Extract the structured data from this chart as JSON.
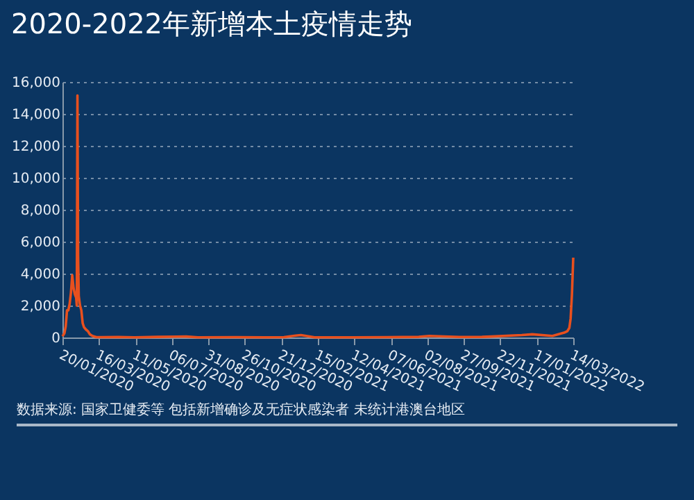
{
  "chart_data": {
    "type": "line",
    "title": "2020-2022年新增本土疫情走势",
    "annotations": [
      "数据来源: 国家卫健委等 包括新增确诊及无症状感染者 未统计港澳台地区"
    ],
    "x": [
      "2020-01-20",
      "2020-01-23",
      "2020-01-25",
      "2020-01-27",
      "2020-01-29",
      "2020-01-31",
      "2020-02-02",
      "2020-02-04",
      "2020-02-06",
      "2020-02-08",
      "2020-02-10",
      "2020-02-11",
      "2020-02-12",
      "2020-02-13",
      "2020-02-14",
      "2020-02-16",
      "2020-02-18",
      "2020-02-20",
      "2020-02-22",
      "2020-02-25",
      "2020-02-28",
      "2020-03-02",
      "2020-03-06",
      "2020-03-12",
      "2020-03-20",
      "2020-04-15",
      "2020-05-10",
      "2020-06-14",
      "2020-07-28",
      "2020-08-15",
      "2020-10-12",
      "2020-11-25",
      "2020-12-25",
      "2021-01-12",
      "2021-01-20",
      "2021-02-10",
      "2021-04-10",
      "2021-06-01",
      "2021-07-20",
      "2021-08-05",
      "2021-09-20",
      "2021-10-25",
      "2021-11-08",
      "2021-12-25",
      "2022-01-10",
      "2022-02-10",
      "2022-02-28",
      "2022-03-05",
      "2022-03-08",
      "2022-03-10",
      "2022-03-12",
      "2022-03-14"
    ],
    "series": [
      {
        "color": "#e8501e",
        "values": [
          80,
          260,
          700,
          1700,
          1700,
          2100,
          2800,
          3900,
          3100,
          2700,
          2500,
          2000,
          15150,
          5100,
          2600,
          2000,
          1700,
          900,
          650,
          500,
          400,
          200,
          100,
          20,
          20,
          30,
          10,
          40,
          60,
          10,
          20,
          10,
          20,
          120,
          150,
          10,
          10,
          20,
          40,
          100,
          30,
          40,
          60,
          150,
          200,
          100,
          300,
          400,
          600,
          1200,
          2700,
          5000
        ]
      }
    ],
    "xlim": [
      "2020-01-20",
      "2022-03-14"
    ],
    "xticks": [
      {
        "value": "2020-01-20",
        "label": "20/01/2020"
      },
      {
        "value": "2020-03-16",
        "label": "16/03/2020"
      },
      {
        "value": "2020-05-11",
        "label": "11/05/2020"
      },
      {
        "value": "2020-07-06",
        "label": "06/07/2020"
      },
      {
        "value": "2020-08-31",
        "label": "31/08/2020"
      },
      {
        "value": "2020-10-26",
        "label": "26/10/2020"
      },
      {
        "value": "2020-12-21",
        "label": "21/12/2020"
      },
      {
        "value": "2021-02-15",
        "label": "15/02/2021"
      },
      {
        "value": "2021-04-12",
        "label": "12/04/2021"
      },
      {
        "value": "2021-06-07",
        "label": "07/06/2021"
      },
      {
        "value": "2021-08-02",
        "label": "02/08/2021"
      },
      {
        "value": "2021-09-27",
        "label": "27/09/2021"
      },
      {
        "value": "2021-11-22",
        "label": "22/11/2021"
      },
      {
        "value": "2022-01-17",
        "label": "17/01/2022"
      },
      {
        "value": "2022-03-14",
        "label": "14/03/2022"
      }
    ],
    "ylim": [
      0,
      16000
    ],
    "yticks": [
      {
        "value": 0,
        "label": "0"
      },
      {
        "value": 2000,
        "label": "2,000"
      },
      {
        "value": 4000,
        "label": "4,000"
      },
      {
        "value": 6000,
        "label": "6,000"
      },
      {
        "value": 8000,
        "label": "8,000"
      },
      {
        "value": 10000,
        "label": "10,000"
      },
      {
        "value": 12000,
        "label": "12,000"
      },
      {
        "value": 14000,
        "label": "14,000"
      },
      {
        "value": 16000,
        "label": "16,000"
      }
    ],
    "grid": "y",
    "marker": "none",
    "line_style": "solid"
  }
}
